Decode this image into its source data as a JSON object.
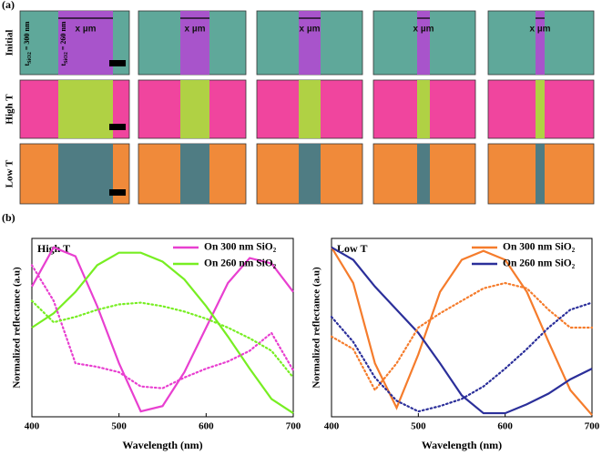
{
  "panel_a": {
    "label": "(a)",
    "row_labels": [
      "Initial",
      "High T",
      "Low T"
    ],
    "x_labels": [
      "x µm",
      "x µm",
      "x µm",
      "x µm",
      "x µm"
    ],
    "thickness_300": {
      "symbol": "t",
      "sub": "SiO2",
      "text": " = 300 nm"
    },
    "thickness_260": {
      "symbol": "t",
      "sub": "SiO2",
      "text": " = 260 nm"
    }
  },
  "panel_b_label": "(b)",
  "chart_data": [
    {
      "type": "line",
      "annotation": "High T",
      "xlabel": "Wavelength (nm)",
      "ylabel": "Normalized reflectance (a.u)",
      "xlim": [
        400,
        700
      ],
      "ylim": [
        0,
        1
      ],
      "xticks": [
        400,
        500,
        600,
        700
      ],
      "legend": "upper right",
      "x": [
        400,
        425,
        450,
        475,
        500,
        525,
        550,
        575,
        600,
        625,
        650,
        675,
        700
      ],
      "series": [
        {
          "name": "On 300 nm SiO₂",
          "color": "#e83fd0",
          "style": "solid",
          "values": [
            0.73,
            0.95,
            0.9,
            0.62,
            0.3,
            0.03,
            0.06,
            0.25,
            0.5,
            0.75,
            0.89,
            0.86,
            0.7
          ]
        },
        {
          "name": "On 260 nm SiO₂",
          "color": "#77ee22",
          "style": "solid",
          "values": [
            0.5,
            0.58,
            0.7,
            0.85,
            0.92,
            0.92,
            0.87,
            0.77,
            0.62,
            0.45,
            0.27,
            0.1,
            0.02
          ]
        },
        {
          "color": "#e83fd0",
          "style": "dotted",
          "values": [
            0.85,
            0.65,
            0.3,
            0.28,
            0.25,
            0.17,
            0.16,
            0.22,
            0.27,
            0.31,
            0.37,
            0.47,
            0.26
          ]
        },
        {
          "color": "#77ee22",
          "style": "dotted",
          "values": [
            0.65,
            0.53,
            0.56,
            0.6,
            0.63,
            0.64,
            0.62,
            0.59,
            0.55,
            0.5,
            0.44,
            0.37,
            0.22
          ]
        }
      ]
    },
    {
      "type": "line",
      "annotation": "Low T",
      "xlabel": "Wavelength (nm)",
      "ylabel": "Normalized reflectance (a.u)",
      "xlim": [
        400,
        700
      ],
      "ylim": [
        0,
        1
      ],
      "xticks": [
        400,
        500,
        600,
        700
      ],
      "legend": "upper right",
      "x": [
        400,
        425,
        450,
        475,
        500,
        525,
        550,
        575,
        600,
        625,
        650,
        675,
        700
      ],
      "series": [
        {
          "name": "On 300 nm SiO₂",
          "color": "#f57c2c",
          "style": "solid",
          "values": [
            0.95,
            0.75,
            0.3,
            0.05,
            0.35,
            0.7,
            0.88,
            0.93,
            0.88,
            0.7,
            0.42,
            0.15,
            0.01
          ]
        },
        {
          "name": "On 260 nm SiO₂",
          "color": "#2b2f9a",
          "style": "solid",
          "values": [
            0.95,
            0.88,
            0.73,
            0.6,
            0.47,
            0.3,
            0.12,
            0.02,
            0.02,
            0.07,
            0.13,
            0.21,
            0.27
          ]
        },
        {
          "color": "#f57c2c",
          "style": "dotted",
          "values": [
            0.45,
            0.38,
            0.15,
            0.3,
            0.5,
            0.58,
            0.65,
            0.72,
            0.75,
            0.72,
            0.6,
            0.5,
            0.5
          ]
        },
        {
          "color": "#2b2f9a",
          "style": "dotted",
          "values": [
            0.56,
            0.42,
            0.22,
            0.09,
            0.03,
            0.06,
            0.1,
            0.17,
            0.27,
            0.38,
            0.5,
            0.6,
            0.64
          ]
        }
      ]
    }
  ]
}
